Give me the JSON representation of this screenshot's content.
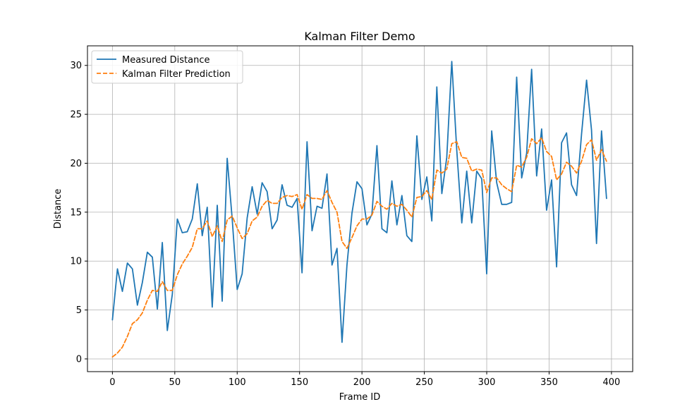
{
  "chart_data": {
    "type": "line",
    "title": "Kalman Filter Demo",
    "xlabel": "Frame ID",
    "ylabel": "Distance",
    "xlim": [
      -20,
      417
    ],
    "ylim": [
      -1.3,
      32
    ],
    "x_ticks": [
      0,
      50,
      100,
      150,
      200,
      250,
      300,
      350,
      400
    ],
    "y_ticks": [
      0,
      5,
      10,
      15,
      20,
      25,
      30
    ],
    "grid": true,
    "legend_position": "top-left",
    "x": [
      0,
      4,
      8,
      12,
      16,
      20,
      24,
      28,
      32,
      36,
      40,
      44,
      48,
      52,
      56,
      60,
      64,
      68,
      72,
      76,
      80,
      84,
      88,
      92,
      96,
      100,
      104,
      108,
      112,
      116,
      120,
      124,
      128,
      132,
      136,
      140,
      144,
      148,
      152,
      156,
      160,
      164,
      168,
      172,
      176,
      180,
      184,
      188,
      192,
      196,
      200,
      204,
      208,
      212,
      216,
      220,
      224,
      228,
      232,
      236,
      240,
      244,
      248,
      252,
      256,
      260,
      264,
      268,
      272,
      276,
      280,
      284,
      288,
      292,
      296,
      300,
      304,
      308,
      312,
      316,
      320,
      324,
      328,
      332,
      336,
      340,
      344,
      348,
      352,
      356,
      360,
      364,
      368,
      372,
      376,
      380,
      384,
      388,
      392,
      396
    ],
    "series": [
      {
        "name": "Measured Distance",
        "color": "#1f77b4",
        "style": "solid",
        "values": [
          4.0,
          9.2,
          6.9,
          9.8,
          9.2,
          5.5,
          7.8,
          10.9,
          10.4,
          5.1,
          11.9,
          2.9,
          6.6,
          14.3,
          12.9,
          13.0,
          14.3,
          17.9,
          12.6,
          15.5,
          5.3,
          15.7,
          5.9,
          20.5,
          14.3,
          7.1,
          8.7,
          14.4,
          17.6,
          14.8,
          18.0,
          17.1,
          13.3,
          14.2,
          17.8,
          15.7,
          15.5,
          16.4,
          8.8,
          22.2,
          13.1,
          15.6,
          15.4,
          18.9,
          9.6,
          11.3,
          1.7,
          9.6,
          14.9,
          18.1,
          17.4,
          13.7,
          14.8,
          21.8,
          13.3,
          12.9,
          18.2,
          13.7,
          16.7,
          12.6,
          12.0,
          22.8,
          16.3,
          18.6,
          14.1,
          27.8,
          16.9,
          20.6,
          30.4,
          21.3,
          13.9,
          19.2,
          13.9,
          19.2,
          18.4,
          8.7,
          23.3,
          18.0,
          15.8,
          15.8,
          16.0,
          28.8,
          18.5,
          21.0,
          29.6,
          18.7,
          23.5,
          15.2,
          18.3,
          9.4,
          22.1,
          23.1,
          17.8,
          16.7,
          23.0,
          28.5,
          23.4,
          11.8,
          23.3,
          16.4
        ]
      },
      {
        "name": "Kalman Filter Prediction",
        "color": "#ff7f0e",
        "style": "dashed",
        "values": [
          0.2,
          0.6,
          1.2,
          2.3,
          3.6,
          4.0,
          4.7,
          6.0,
          7.0,
          6.9,
          7.9,
          7.0,
          7.0,
          8.6,
          9.7,
          10.5,
          11.4,
          13.3,
          13.3,
          14.1,
          12.5,
          13.6,
          12.0,
          14.2,
          14.6,
          13.4,
          12.3,
          12.8,
          14.1,
          14.5,
          15.6,
          16.2,
          15.9,
          15.9,
          16.5,
          16.7,
          16.6,
          16.8,
          15.3,
          16.8,
          16.4,
          16.4,
          16.3,
          17.2,
          16.0,
          15.0,
          12.0,
          11.3,
          12.4,
          13.6,
          14.3,
          14.3,
          14.7,
          16.1,
          15.6,
          15.3,
          15.9,
          15.6,
          15.8,
          15.2,
          14.5,
          16.5,
          16.6,
          17.2,
          16.3,
          19.3,
          19.0,
          19.4,
          22.0,
          22.2,
          20.6,
          20.5,
          19.2,
          19.4,
          19.3,
          17.0,
          18.5,
          18.5,
          17.8,
          17.4,
          17.1,
          19.8,
          19.6,
          20.6,
          22.5,
          22.0,
          22.6,
          21.2,
          20.7,
          18.3,
          18.9,
          20.1,
          19.7,
          19.0,
          20.2,
          21.9,
          22.4,
          20.3,
          21.4,
          20.2
        ]
      }
    ]
  }
}
